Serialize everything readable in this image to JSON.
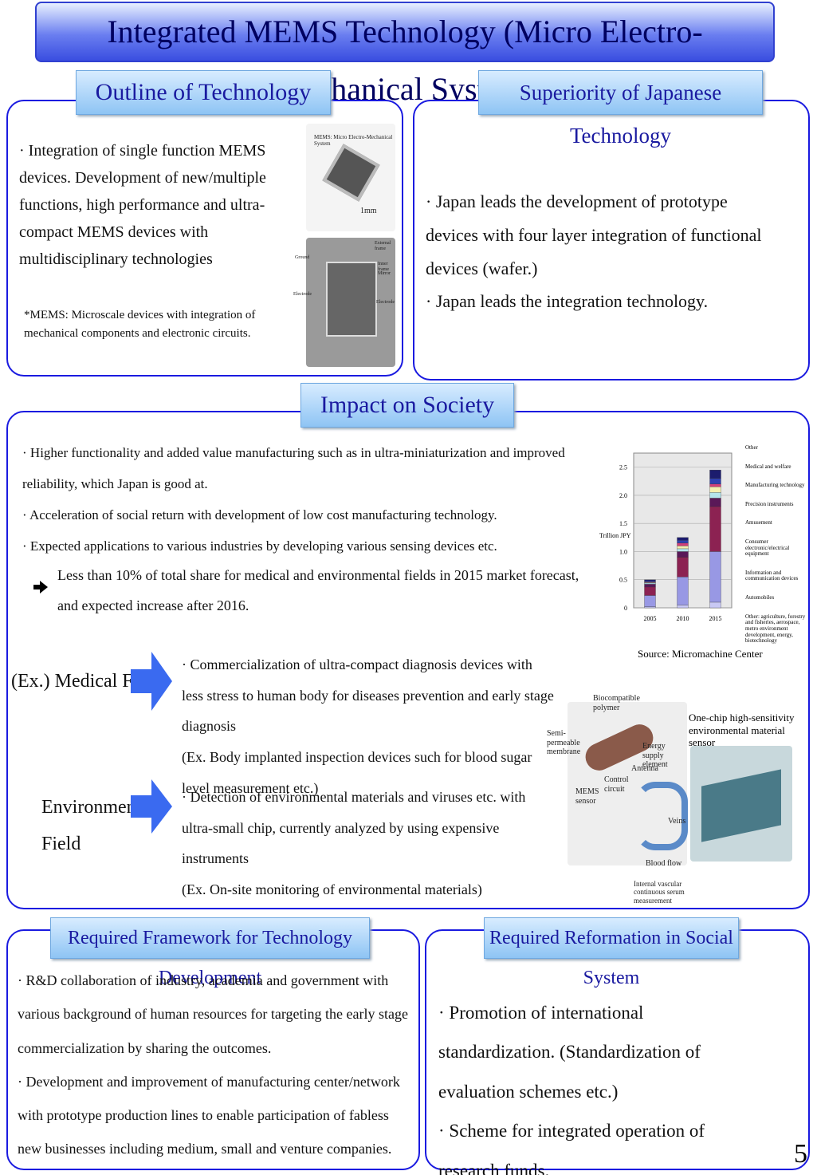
{
  "title": "Integrated MEMS Technology (Micro Electro-Mechanical System)",
  "sections": {
    "outline": {
      "heading": "Outline of Technology",
      "bullets": [
        "· Integration of single function MEMS devices. Development of new/multiple functions, high performance and ultra-compact MEMS devices with multidisciplinary technologies"
      ],
      "note": "*MEMS: Microscale devices with integration of mechanical components and electronic circuits.",
      "chip_caption": "MEMS: Micro Electro-Mechanical System",
      "scale": "1mm",
      "figure_labels": [
        "External frame",
        "Ground",
        "Inner frame",
        "Mirror",
        "Electrode",
        "Electrode"
      ]
    },
    "superiority": {
      "heading": "Superiority of Japanese Technology",
      "bullets": [
        "· Japan leads the development of prototype devices with four layer integration of functional devices (wafer.)",
        "· Japan leads the integration technology."
      ]
    },
    "impact": {
      "heading": "Impact on Society",
      "bullets": [
        "· Higher functionality and added value manufacturing such as in ultra-miniaturization and improved reliability, which Japan is good at.",
        "· Acceleration of social return with development of low cost manufacturing technology.",
        "· Expected applications to various industries by developing various sensing devices etc."
      ],
      "arrow_note": "Less than 10% of total share for medical and environmental fields in 2015 market forecast, and expected increase after 2016.",
      "medical": {
        "label": "(Ex.) Medical Field",
        "lines": [
          "· Commercialization of ultra-compact diagnosis devices with less stress to human body for diseases prevention and early stage diagnosis",
          "(Ex. Body implanted inspection devices such for blood sugar level measurement etc.)"
        ]
      },
      "environmental": {
        "label": "Environmental Field",
        "lines": [
          "· Detection of environmental materials and viruses etc. with ultra-small chip, currently analyzed by using expensive instruments",
          "(Ex. On-site monitoring of environmental materials)"
        ]
      },
      "source": "Source: Micromachine Center",
      "medical_figure_labels": [
        "Biocompatible polymer",
        "Semi-permeable membrane",
        "Energy supply element",
        "Antenna",
        "Control circuit",
        "MEMS sensor",
        "Veins",
        "Blood flow",
        "Internal vascular continuous serum measurement"
      ],
      "sensor_caption": "One-chip high-sensitivity environmental material sensor"
    },
    "framework": {
      "heading": "Required Framework for Technology Development",
      "bullets": [
        "· R&D collaboration of industry, academia and government with various background of human resources for targeting the early stage commercialization by sharing the outcomes.",
        "· Development and improvement of manufacturing center/network with prototype production lines to enable participation of fabless new businesses including medium, small and venture companies."
      ]
    },
    "reformation": {
      "heading": "Required Reformation in Social System",
      "bullets": [
        "· Promotion of international standardization. (Standardization of evaluation schemes etc.)",
        "· Scheme for integrated operation of research funds."
      ]
    }
  },
  "chart_data": {
    "type": "stacked_bar",
    "y_label": "Trillion JPY",
    "categories": [
      "2005",
      "2010",
      "2015"
    ],
    "ylim": [
      0,
      2.75
    ],
    "yticks": [
      0,
      0.5,
      {
        "value": 1,
        "label": "1.0"
      },
      1.5,
      {
        "value": 2,
        "label": "2.0"
      },
      2.5
    ],
    "series": [
      {
        "name": "Other",
        "color": "#1c1c6e",
        "values": [
          0.02,
          0.05,
          0.15
        ]
      },
      {
        "name": "Medical and welfare",
        "color": "#2f3fb0",
        "values": [
          0.02,
          0.05,
          0.1
        ]
      },
      {
        "name": "Manufacturing technology",
        "color": "#d0407a",
        "values": [
          0.01,
          0.05,
          0.05
        ]
      },
      {
        "name": "Precision instruments",
        "color": "#f4eeb0",
        "values": [
          0.01,
          0.05,
          0.1
        ]
      },
      {
        "name": "Amusement",
        "color": "#b4e4ec",
        "values": [
          0.02,
          0.05,
          0.1
        ]
      },
      {
        "name": "Consumer electronic/electrical equipment",
        "color": "#5a1858",
        "values": [
          0.05,
          0.1,
          0.15
        ]
      },
      {
        "name": "Information and communication devices",
        "color": "#8c2252",
        "values": [
          0.15,
          0.35,
          0.8
        ]
      },
      {
        "name": "Automobiles",
        "color": "#9898e4",
        "values": [
          0.2,
          0.5,
          0.9
        ]
      },
      {
        "name": "Other: agriculture, forestry and fisheries, aerospace, metro environment development, energy, biotechnology",
        "color": "#c8c8f4",
        "values": [
          0.02,
          0.05,
          0.1
        ]
      }
    ]
  },
  "page_number": "5"
}
